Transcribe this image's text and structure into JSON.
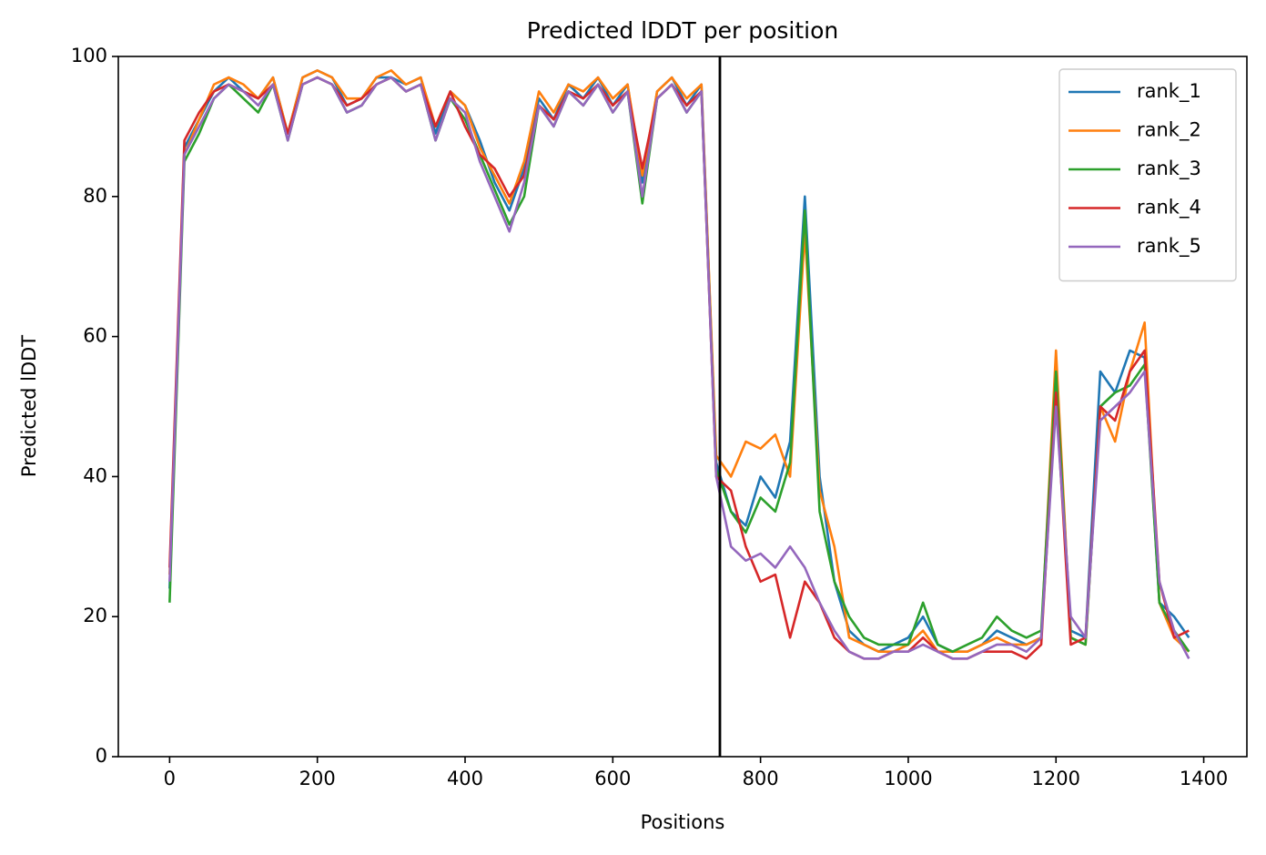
{
  "chart_data": {
    "type": "line",
    "title": "Predicted lDDT per position",
    "xlabel": "Positions",
    "ylabel": "Predicted lDDT",
    "xlim": [
      -69.45,
      1458.45
    ],
    "ylim": [
      0,
      100
    ],
    "xticks": [
      0,
      200,
      400,
      600,
      800,
      1000,
      1200,
      1400
    ],
    "yticks": [
      0,
      20,
      40,
      60,
      80,
      100
    ],
    "vlines": [
      745
    ],
    "vline_color": "#000000",
    "legend": "upper right",
    "x": [
      0,
      20,
      40,
      60,
      80,
      100,
      120,
      140,
      160,
      180,
      200,
      220,
      240,
      260,
      280,
      300,
      320,
      340,
      360,
      380,
      400,
      420,
      440,
      460,
      480,
      500,
      520,
      540,
      560,
      580,
      600,
      620,
      640,
      660,
      680,
      700,
      720,
      740,
      760,
      780,
      800,
      820,
      840,
      860,
      880,
      900,
      920,
      940,
      960,
      980,
      1000,
      1020,
      1040,
      1060,
      1080,
      1100,
      1120,
      1140,
      1160,
      1180,
      1200,
      1220,
      1240,
      1260,
      1280,
      1300,
      1320,
      1340,
      1360,
      1380
    ],
    "series": [
      {
        "name": "rank_1",
        "color": "#1f77b4",
        "values": [
          24,
          87,
          91,
          95,
          97,
          95,
          94,
          97,
          89,
          97,
          98,
          97,
          93,
          94,
          97,
          97,
          96,
          97,
          89,
          95,
          93,
          88,
          82,
          78,
          84,
          94,
          91,
          96,
          94,
          97,
          93,
          96,
          82,
          95,
          97,
          93,
          96,
          42,
          35,
          33,
          40,
          37,
          45,
          80,
          40,
          25,
          18,
          16,
          15,
          16,
          17,
          20,
          16,
          15,
          15,
          16,
          18,
          17,
          16,
          17,
          55,
          18,
          17,
          55,
          52,
          58,
          57,
          22,
          20,
          17
        ]
      },
      {
        "name": "rank_2",
        "color": "#ff7f0e",
        "values": [
          26,
          86,
          91,
          96,
          97,
          96,
          94,
          97,
          89,
          97,
          98,
          97,
          94,
          94,
          97,
          98,
          96,
          97,
          90,
          95,
          93,
          87,
          83,
          79,
          85,
          95,
          92,
          96,
          95,
          97,
          94,
          96,
          83,
          95,
          97,
          94,
          96,
          43,
          40,
          45,
          44,
          46,
          40,
          75,
          38,
          30,
          17,
          16,
          15,
          15,
          16,
          18,
          15,
          15,
          15,
          16,
          17,
          16,
          16,
          17,
          58,
          17,
          16,
          50,
          45,
          55,
          62,
          22,
          17,
          15
        ]
      },
      {
        "name": "rank_3",
        "color": "#2ca02c",
        "values": [
          22,
          85,
          89,
          94,
          96,
          94,
          92,
          96,
          88,
          96,
          97,
          96,
          92,
          93,
          96,
          97,
          95,
          96,
          88,
          94,
          91,
          86,
          81,
          76,
          80,
          93,
          90,
          95,
          93,
          96,
          92,
          95,
          79,
          94,
          96,
          92,
          95,
          41,
          35,
          32,
          37,
          35,
          42,
          78,
          35,
          25,
          20,
          17,
          16,
          16,
          16,
          22,
          16,
          15,
          16,
          17,
          20,
          18,
          17,
          18,
          55,
          17,
          16,
          50,
          52,
          53,
          56,
          22,
          18,
          15
        ]
      },
      {
        "name": "rank_4",
        "color": "#d62728",
        "values": [
          27,
          88,
          92,
          95,
          96,
          95,
          94,
          96,
          89,
          96,
          97,
          96,
          93,
          94,
          96,
          97,
          95,
          96,
          90,
          95,
          90,
          86,
          84,
          80,
          83,
          93,
          91,
          95,
          94,
          96,
          93,
          95,
          84,
          94,
          96,
          93,
          95,
          40,
          38,
          30,
          25,
          26,
          17,
          25,
          22,
          17,
          15,
          14,
          14,
          15,
          15,
          17,
          15,
          14,
          14,
          15,
          15,
          15,
          14,
          16,
          52,
          16,
          17,
          50,
          48,
          55,
          58,
          25,
          17,
          18
        ]
      },
      {
        "name": "rank_5",
        "color": "#9467bd",
        "values": [
          25,
          86,
          90,
          94,
          96,
          95,
          93,
          96,
          88,
          96,
          97,
          96,
          92,
          93,
          96,
          97,
          95,
          96,
          88,
          94,
          92,
          85,
          80,
          75,
          82,
          93,
          90,
          95,
          93,
          96,
          92,
          95,
          80,
          94,
          96,
          92,
          95,
          40,
          30,
          28,
          29,
          27,
          30,
          27,
          22,
          18,
          15,
          14,
          14,
          15,
          15,
          16,
          15,
          14,
          14,
          15,
          16,
          16,
          15,
          17,
          50,
          20,
          17,
          48,
          50,
          52,
          55,
          25,
          18,
          14
        ]
      }
    ]
  }
}
